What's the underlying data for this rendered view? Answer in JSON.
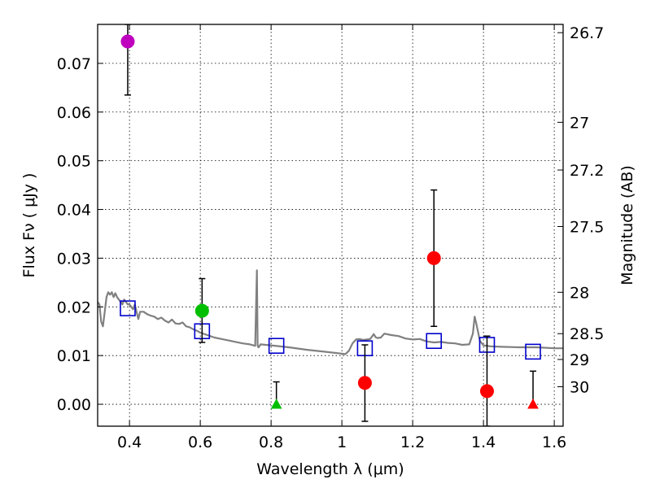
{
  "chart_data": {
    "type": "scatter",
    "title": "",
    "xlabel": "Wavelength  λ (μm)",
    "ylabel": "Flux  Fν  ( μJy )",
    "ylabel_right": "Magnitude (AB)",
    "xlim": [
      0.31,
      1.625
    ],
    "ylim": [
      -0.0045,
      0.078
    ],
    "xticks": [
      0.4,
      0.6,
      0.8,
      1.0,
      1.2,
      1.4,
      1.6
    ],
    "xtick_labels": [
      "0.4",
      "0.6",
      "0.8",
      "1",
      "1.2",
      "1.4",
      "1.6"
    ],
    "yticks": [
      0.0,
      0.01,
      0.02,
      0.03,
      0.04,
      0.05,
      0.06,
      0.07
    ],
    "ytick_labels": [
      "0.00",
      "0.01",
      "0.02",
      "0.03",
      "0.04",
      "0.05",
      "0.06",
      "0.07"
    ],
    "right_ticks": [
      {
        "label": "26.7",
        "flux": 0.0763
      },
      {
        "label": "27",
        "flux": 0.0579
      },
      {
        "label": "27.2",
        "flux": 0.0481
      },
      {
        "label": "27.5",
        "flux": 0.0365
      },
      {
        "label": "28",
        "flux": 0.023
      },
      {
        "label": "28.5",
        "flux": 0.0145
      },
      {
        "label": "29",
        "flux": 0.0092
      },
      {
        "label": "30",
        "flux": 0.0036
      }
    ],
    "grid": true,
    "colors": {
      "model": "#808080",
      "squares": "#0000cc",
      "errorbar": "#000000",
      "purple": "#bf00bf",
      "green": "#00bf00",
      "red": "#ff0000"
    },
    "series": [
      {
        "name": "model spectrum",
        "kind": "line",
        "color": "#808080",
        "x": [
          0.31,
          0.315,
          0.32,
          0.325,
          0.33,
          0.335,
          0.34,
          0.345,
          0.35,
          0.355,
          0.36,
          0.365,
          0.37,
          0.375,
          0.38,
          0.385,
          0.39,
          0.395,
          0.4,
          0.405,
          0.41,
          0.415,
          0.42,
          0.425,
          0.43,
          0.44,
          0.45,
          0.46,
          0.47,
          0.48,
          0.49,
          0.5,
          0.51,
          0.52,
          0.53,
          0.54,
          0.55,
          0.56,
          0.57,
          0.58,
          0.59,
          0.6,
          0.62,
          0.64,
          0.66,
          0.68,
          0.7,
          0.72,
          0.74,
          0.755,
          0.76,
          0.762,
          0.764,
          0.766,
          0.77,
          0.8,
          0.85,
          0.9,
          0.95,
          1.0,
          1.01,
          1.02,
          1.03,
          1.04,
          1.05,
          1.06,
          1.08,
          1.09,
          1.095,
          1.1,
          1.11,
          1.12,
          1.14,
          1.16,
          1.18,
          1.2,
          1.22,
          1.24,
          1.26,
          1.28,
          1.3,
          1.32,
          1.34,
          1.36,
          1.37,
          1.375,
          1.38,
          1.39,
          1.4,
          1.42,
          1.45,
          1.5,
          1.55,
          1.6,
          1.625
        ],
        "y": [
          0.021,
          0.0205,
          0.017,
          0.016,
          0.019,
          0.022,
          0.023,
          0.0225,
          0.023,
          0.022,
          0.0228,
          0.022,
          0.0215,
          0.021,
          0.0205,
          0.0215,
          0.021,
          0.0205,
          0.0205,
          0.02,
          0.0195,
          0.0205,
          0.019,
          0.0175,
          0.019,
          0.019,
          0.0185,
          0.0182,
          0.018,
          0.0175,
          0.0178,
          0.0172,
          0.0168,
          0.0174,
          0.0166,
          0.0165,
          0.0168,
          0.016,
          0.0158,
          0.0154,
          0.0151,
          0.0147,
          0.0142,
          0.0137,
          0.0134,
          0.0131,
          0.0128,
          0.0125,
          0.0123,
          0.012,
          0.0275,
          0.0121,
          0.0117,
          0.0118,
          0.0123,
          0.0121,
          0.0117,
          0.0112,
          0.0108,
          0.0104,
          0.0103,
          0.011,
          0.0125,
          0.0133,
          0.0134,
          0.0132,
          0.0134,
          0.0144,
          0.0138,
          0.0136,
          0.0137,
          0.0145,
          0.0142,
          0.014,
          0.0135,
          0.0133,
          0.0134,
          0.0129,
          0.0127,
          0.0128,
          0.0126,
          0.0125,
          0.0122,
          0.0123,
          0.0145,
          0.018,
          0.0165,
          0.013,
          0.0121,
          0.0119,
          0.0118,
          0.0117,
          0.0117,
          0.0115,
          0.0115
        ]
      },
      {
        "name": "model band flux",
        "kind": "squares",
        "color": "#0000cc",
        "x": [
          0.395,
          0.605,
          0.815,
          1.065,
          1.26,
          1.41,
          1.54
        ],
        "y": [
          0.0197,
          0.015,
          0.012,
          0.0115,
          0.013,
          0.0122,
          0.0108
        ]
      },
      {
        "name": "observed",
        "kind": "points",
        "points": [
          {
            "x": 0.395,
            "y": 0.0745,
            "ylow": 0.0635,
            "yhigh": 0.078,
            "marker": "circle",
            "color": "#bf00bf"
          },
          {
            "x": 0.605,
            "y": 0.0192,
            "ylow": 0.0127,
            "yhigh": 0.0258,
            "marker": "circle",
            "color": "#00bf00"
          },
          {
            "x": 0.815,
            "y": 0.0,
            "ylow": 0.0,
            "yhigh": 0.0046,
            "marker": "triangle",
            "color": "#00bf00"
          },
          {
            "x": 1.065,
            "y": 0.0044,
            "ylow": -0.0035,
            "yhigh": 0.0122,
            "marker": "circle",
            "color": "#ff0000"
          },
          {
            "x": 1.26,
            "y": 0.03,
            "ylow": 0.016,
            "yhigh": 0.044,
            "marker": "circle",
            "color": "#ff0000"
          },
          {
            "x": 1.41,
            "y": 0.0027,
            "ylow": -0.0045,
            "yhigh": 0.014,
            "marker": "circle",
            "color": "#ff0000"
          },
          {
            "x": 1.54,
            "y": 0.0,
            "ylow": 0.0,
            "yhigh": 0.0068,
            "marker": "triangle",
            "color": "#ff0000"
          }
        ]
      }
    ]
  }
}
